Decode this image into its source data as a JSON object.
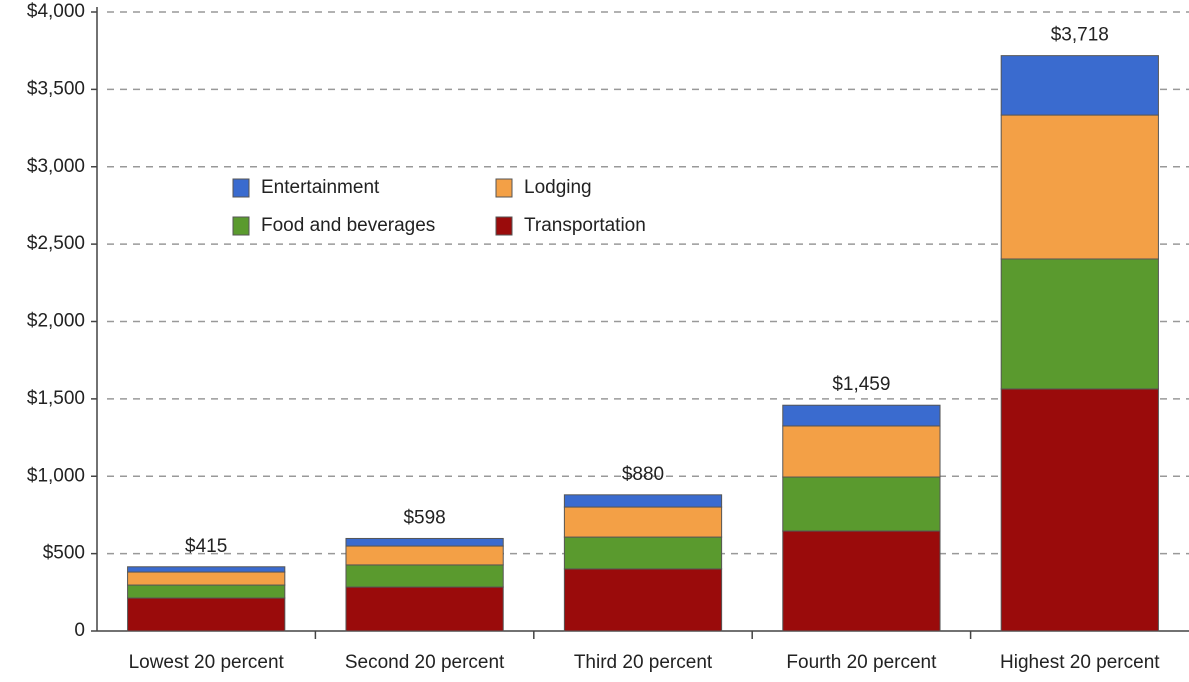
{
  "chart_data": {
    "type": "stacked_bar",
    "categories": [
      "Lowest 20 percent",
      "Second 20 percent",
      "Third 20 percent",
      "Fourth 20 percent",
      "Highest 20 percent"
    ],
    "series": [
      {
        "name": "Transportation",
        "color": "#9a0b0b",
        "values": [
          213,
          284,
          401,
          646,
          1564
        ]
      },
      {
        "name": "Food and beverages",
        "color": "#5a9a2e",
        "values": [
          84,
          143,
          206,
          349,
          840
        ]
      },
      {
        "name": "Lodging",
        "color": "#f3a046",
        "values": [
          84,
          122,
          194,
          330,
          930
        ]
      },
      {
        "name": "Entertainment",
        "color": "#3a6bcf",
        "values": [
          34,
          49,
          79,
          134,
          384
        ]
      }
    ],
    "totals": {
      "values": [
        415,
        598,
        880,
        1459,
        3718
      ],
      "value_labels": [
        "$415",
        "$598",
        "$880",
        "$1,459",
        "$3,718"
      ]
    },
    "ylim": [
      0,
      4000
    ],
    "yticks": [
      0,
      {
        "value": 500,
        "label": "$500"
      },
      {
        "value": 1000,
        "label": "$1,000"
      },
      {
        "value": 1500,
        "label": "$1,500"
      },
      {
        "value": 2000,
        "label": "$2,000"
      },
      {
        "value": 2500,
        "label": "$2,500"
      },
      {
        "value": 3000,
        "label": "$3,000"
      },
      {
        "value": 3500,
        "label": "$3,500"
      },
      {
        "value": 4000,
        "label": "$4,000"
      }
    ],
    "grid": true
  }
}
